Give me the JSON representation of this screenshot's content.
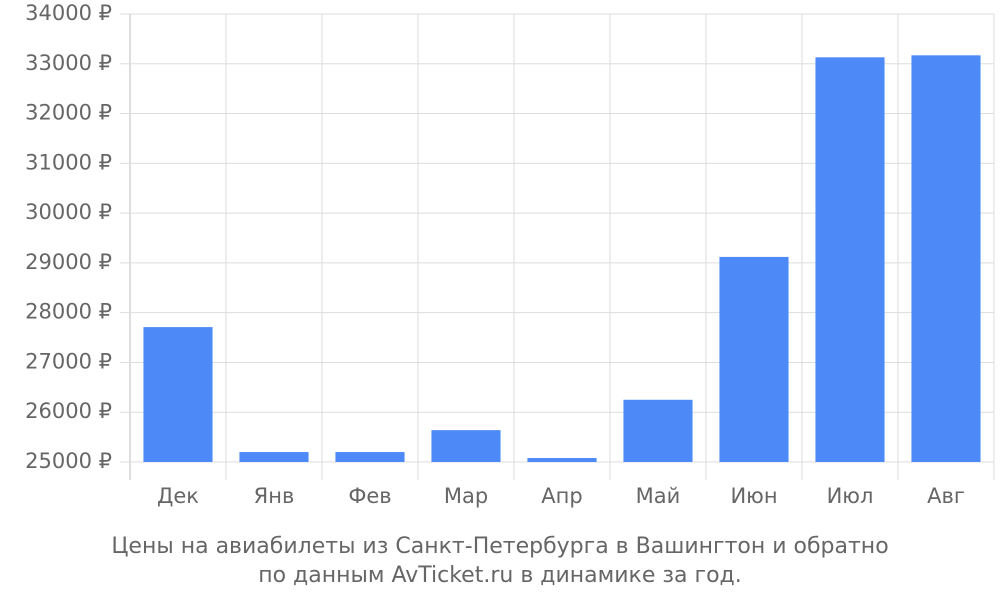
{
  "chart_data": {
    "type": "bar",
    "title_lines": [
      "Цены на авиабилеты из Санкт-Петербурга в Вашингтон и обратно",
      "по данным AvTicket.ru в динамике за год."
    ],
    "categories": [
      "Дек",
      "Янв",
      "Фев",
      "Мар",
      "Апр",
      "Май",
      "Июн",
      "Июл",
      "Авг"
    ],
    "values": [
      27710,
      25200,
      25200,
      25640,
      25080,
      26250,
      29120,
      33130,
      33170
    ],
    "color": "#4d8af8",
    "ylim": [
      25000,
      34000
    ],
    "yticks": [
      {
        "value": 25000,
        "label": "25000 ₽"
      },
      {
        "value": 26000,
        "label": "26000 ₽"
      },
      {
        "value": 27000,
        "label": "27000 ₽"
      },
      {
        "value": 28000,
        "label": "28000 ₽"
      },
      {
        "value": 29000,
        "label": "29000 ₽"
      },
      {
        "value": 30000,
        "label": "30000 ₽"
      },
      {
        "value": 31000,
        "label": "31000 ₽"
      },
      {
        "value": 32000,
        "label": "32000 ₽"
      },
      {
        "value": 33000,
        "label": "33000 ₽"
      },
      {
        "value": 34000,
        "label": "34000 ₽"
      }
    ],
    "grid": true
  }
}
